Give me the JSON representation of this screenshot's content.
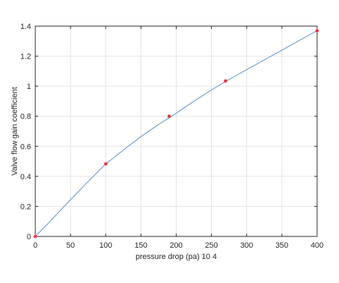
{
  "chart_data": {
    "type": "line",
    "title": "",
    "xlabel": "pressure drop (pa) 10 4",
    "ylabel": "Valve flow gain coefficient",
    "xlim": [
      0,
      400
    ],
    "ylim": [
      0,
      1.4
    ],
    "xticks": [
      0,
      50,
      100,
      150,
      200,
      250,
      300,
      350,
      400
    ],
    "xtick_labels": [
      "0",
      "50",
      "100",
      "150",
      "200",
      "250",
      "300",
      "350",
      "400"
    ],
    "yticks": [
      0,
      0.2,
      0.4,
      0.6,
      0.8,
      1,
      1.2,
      1.4
    ],
    "ytick_labels": [
      "0",
      "0.2",
      "0.4",
      "0.6",
      "0.8",
      "1",
      "1.2",
      "1.4"
    ],
    "grid": true,
    "legend": "none",
    "series": [
      {
        "style": "line",
        "color": "#5b8fc7",
        "x": [
          0,
          25,
          50,
          75,
          100,
          125,
          150,
          175,
          200,
          225,
          250,
          275,
          300,
          325,
          350,
          375,
          400
        ],
        "y": [
          0,
          0.12,
          0.245,
          0.365,
          0.483,
          0.575,
          0.665,
          0.745,
          0.82,
          0.9,
          0.975,
          1.045,
          1.11,
          1.175,
          1.24,
          1.305,
          1.37
        ]
      },
      {
        "style": "markers",
        "marker": "asterisk",
        "color": "#e8202a",
        "x": [
          0,
          100,
          190,
          270,
          400
        ],
        "y": [
          0,
          0.483,
          0.8,
          1.035,
          1.37
        ]
      }
    ]
  }
}
